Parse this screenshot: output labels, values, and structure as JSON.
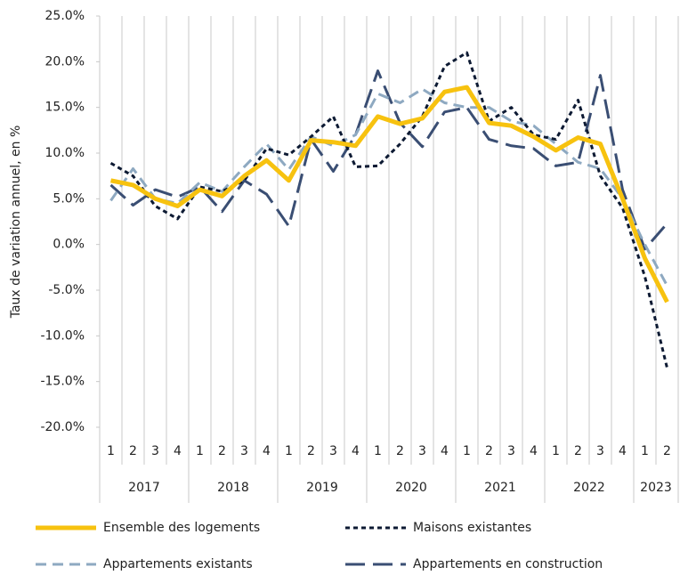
{
  "chart_data": {
    "type": "line",
    "y_axis_label": "Taux de variation annuel, en %",
    "categories": [
      "1",
      "2",
      "3",
      "4",
      "1",
      "2",
      "3",
      "4",
      "1",
      "2",
      "3",
      "4",
      "1",
      "2",
      "3",
      "4",
      "1",
      "2",
      "3",
      "4",
      "1",
      "2",
      "3",
      "4",
      "1",
      "2"
    ],
    "year_groups": [
      {
        "label": "2017",
        "span": 4
      },
      {
        "label": "2018",
        "span": 4
      },
      {
        "label": "2019",
        "span": 4
      },
      {
        "label": "2020",
        "span": 4
      },
      {
        "label": "2021",
        "span": 4
      },
      {
        "label": "2022",
        "span": 4
      },
      {
        "label": "2023",
        "span": 2
      }
    ],
    "ylim": [
      -20,
      25
    ],
    "yticks": [
      {
        "value": 25,
        "label": "25.0%"
      },
      {
        "value": 20,
        "label": "20.0%"
      },
      {
        "value": 15,
        "label": "15.0%"
      },
      {
        "value": 10,
        "label": "10.0%"
      },
      {
        "value": 5,
        "label": "5.0%"
      },
      {
        "value": 0,
        "label": "0.0%"
      },
      {
        "value": -5,
        "label": "-5.0%"
      },
      {
        "value": -10,
        "label": "-10.0%"
      },
      {
        "value": -15,
        "label": "-15.0%"
      },
      {
        "value": -20,
        "label": "-20.0%"
      }
    ],
    "grid": "vertical",
    "legend": "bottom",
    "series": [
      {
        "name": "Ensemble des logements",
        "color": "#f7c20f",
        "style": "solid",
        "values": [
          7.0,
          6.5,
          5.0,
          4.2,
          6.0,
          5.3,
          7.5,
          9.2,
          7.0,
          11.4,
          11.2,
          10.8,
          14.0,
          13.2,
          13.8,
          16.7,
          17.2,
          13.3,
          13.0,
          11.8,
          10.3,
          11.7,
          11.0,
          5.0,
          -1.5,
          -6.3
        ]
      },
      {
        "name": "Maisons existantes",
        "color": "#0d1a33",
        "style": "dotted",
        "values": [
          8.9,
          7.5,
          4.2,
          2.8,
          6.3,
          5.8,
          7.0,
          10.5,
          9.8,
          11.8,
          14.0,
          8.5,
          8.6,
          11.0,
          14.0,
          19.5,
          21.0,
          13.5,
          15.0,
          12.0,
          11.5,
          15.8,
          7.5,
          4.0,
          -3.5,
          -13.5
        ]
      },
      {
        "name": "Appartements existants",
        "color": "#8ea9c1",
        "style": "dashed",
        "values": [
          4.8,
          8.3,
          5.0,
          4.5,
          6.8,
          5.8,
          8.5,
          11.0,
          8.2,
          11.8,
          10.8,
          12.0,
          16.5,
          15.5,
          17.0,
          15.5,
          15.0,
          15.0,
          13.5,
          13.0,
          11.0,
          9.0,
          8.3,
          5.0,
          0.0,
          -4.5
        ]
      },
      {
        "name": "Appartements en construction",
        "color": "#3a4e73",
        "style": "longdash",
        "values": [
          6.5,
          4.3,
          6.0,
          5.2,
          6.3,
          3.6,
          7.0,
          5.5,
          2.0,
          11.5,
          8.0,
          12.0,
          19.0,
          13.3,
          10.7,
          14.5,
          15.0,
          11.5,
          10.8,
          10.5,
          8.6,
          9.0,
          18.5,
          6.0,
          -0.5,
          2.3
        ]
      }
    ]
  }
}
